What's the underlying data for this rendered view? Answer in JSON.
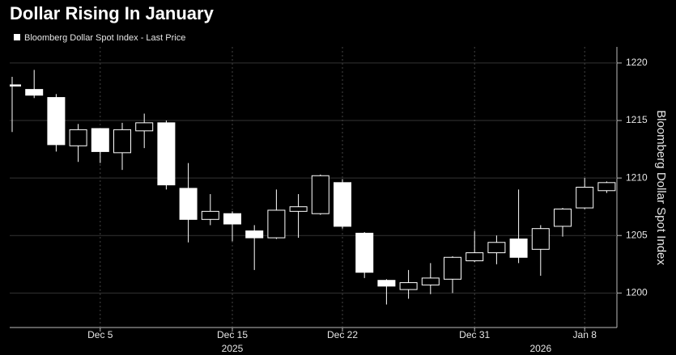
{
  "chart_data": {
    "type": "candlestick",
    "title": "Dollar Rising In January",
    "legend_label": "Bloomberg Dollar Spot Index - Last Price",
    "y_axis_label": "Bloomberg Dollar Spot Index",
    "categories": [
      null,
      null,
      null,
      null,
      "Dec 5",
      null,
      null,
      null,
      null,
      null,
      "Dec 15",
      null,
      null,
      null,
      null,
      "Dec 22",
      null,
      null,
      null,
      null,
      null,
      "Dec 31",
      null,
      null,
      null,
      null,
      "Jan 8",
      null
    ],
    "year_labels": [
      null,
      null,
      null,
      null,
      null,
      null,
      null,
      null,
      null,
      null,
      "2025",
      null,
      null,
      null,
      null,
      null,
      null,
      null,
      null,
      null,
      null,
      null,
      null,
      null,
      "2026",
      null,
      null,
      null
    ],
    "open": [
      1218.1,
      1217.7,
      1217.0,
      1212.8,
      1214.3,
      1212.2,
      1214.1,
      1214.8,
      1209.1,
      1206.4,
      1206.9,
      1205.4,
      1204.8,
      1207.1,
      1206.9,
      1209.6,
      1205.2,
      1201.1,
      1200.3,
      1200.7,
      1201.2,
      1202.8,
      1203.5,
      1204.7,
      1203.8,
      1205.8,
      1207.4,
      1208.9
    ],
    "high": [
      1218.8,
      1219.4,
      1217.3,
      1214.7,
      1214.3,
      1214.8,
      1215.6,
      1215.0,
      1211.3,
      1208.6,
      1207.1,
      1205.9,
      1209.0,
      1208.6,
      1210.3,
      1209.9,
      1205.3,
      1201.2,
      1202.0,
      1202.6,
      1203.2,
      1205.4,
      1205.0,
      1209.0,
      1205.9,
      1207.4,
      1210.0,
      1209.7
    ],
    "low": [
      1214.0,
      1216.95,
      1212.3,
      1211.4,
      1211.3,
      1210.7,
      1212.6,
      1209.0,
      1204.4,
      1205.9,
      1204.5,
      1202.0,
      1204.7,
      1204.8,
      1206.8,
      1205.6,
      1201.3,
      1199.0,
      1199.5,
      1199.9,
      1200.0,
      1202.7,
      1202.5,
      1202.6,
      1201.5,
      1204.9,
      1207.3,
      1208.7
    ],
    "close": [
      1218.0,
      1217.2,
      1212.9,
      1214.2,
      1212.3,
      1214.2,
      1214.8,
      1209.4,
      1206.4,
      1207.1,
      1206.0,
      1204.8,
      1207.2,
      1207.5,
      1210.2,
      1205.8,
      1201.8,
      1200.6,
      1200.9,
      1201.3,
      1203.1,
      1203.5,
      1204.4,
      1203.1,
      1205.6,
      1207.3,
      1209.2,
      1209.6
    ],
    "ylim": [
      1197.0,
      1221.4
    ],
    "yticks": [
      1200,
      1205,
      1210,
      1215,
      1220
    ],
    "grid": true,
    "up_fill": "#000000",
    "down_fill": "#ffffff",
    "edge_color": "#ffffff"
  }
}
